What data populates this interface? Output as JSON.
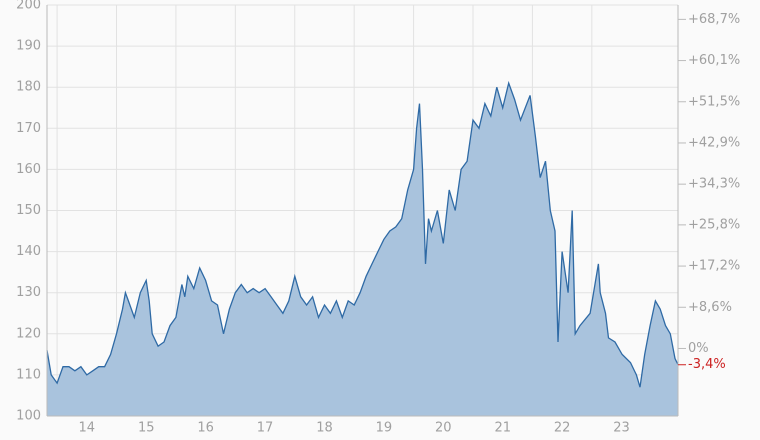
{
  "chart_data": {
    "type": "area",
    "x": [
      13.83,
      13.9,
      14.0,
      14.1,
      14.2,
      14.3,
      14.4,
      14.5,
      14.6,
      14.7,
      14.8,
      14.9,
      15.0,
      15.1,
      15.15,
      15.2,
      15.3,
      15.4,
      15.5,
      15.55,
      15.6,
      15.7,
      15.8,
      15.9,
      16.0,
      16.1,
      16.15,
      16.2,
      16.3,
      16.4,
      16.5,
      16.6,
      16.7,
      16.8,
      16.9,
      17.0,
      17.1,
      17.2,
      17.3,
      17.4,
      17.5,
      17.6,
      17.7,
      17.8,
      17.9,
      18.0,
      18.1,
      18.2,
      18.3,
      18.4,
      18.5,
      18.6,
      18.7,
      18.8,
      18.9,
      19.0,
      19.1,
      19.2,
      19.3,
      19.4,
      19.5,
      19.6,
      19.7,
      19.8,
      19.9,
      20.0,
      20.05,
      20.1,
      20.15,
      20.2,
      20.25,
      20.3,
      20.4,
      20.5,
      20.6,
      20.7,
      20.8,
      20.9,
      21.0,
      21.1,
      21.2,
      21.3,
      21.4,
      21.5,
      21.6,
      21.7,
      21.8,
      21.96,
      22.05,
      22.13,
      22.22,
      22.3,
      22.38,
      22.43,
      22.5,
      22.6,
      22.67,
      22.72,
      22.8,
      22.97,
      23.11,
      23.14,
      23.23,
      23.28,
      23.39,
      23.51,
      23.65,
      23.75,
      23.81,
      23.89,
      23.98,
      24.07,
      24.15,
      24.24,
      24.32,
      24.4,
      24.45
    ],
    "series": [
      {
        "color": "#2f6aa5",
        "fill": "#a9c3dd",
        "values": [
          116,
          110,
          108,
          112,
          112,
          111,
          112,
          110,
          111,
          112,
          112,
          115,
          120,
          126,
          130,
          128,
          124,
          130,
          133,
          128,
          120,
          117,
          118,
          122,
          124,
          132,
          129,
          134,
          131,
          136,
          133,
          128,
          127,
          120,
          126,
          130,
          132,
          130,
          131,
          130,
          131,
          129,
          127,
          125,
          128,
          134,
          129,
          127,
          129,
          124,
          127,
          125,
          128,
          124,
          128,
          127,
          130,
          134,
          137,
          140,
          143,
          145,
          146,
          148,
          155,
          160,
          170,
          176,
          160,
          137,
          148,
          145,
          150,
          142,
          155,
          150,
          160,
          162,
          172,
          170,
          176,
          173,
          180,
          175,
          181,
          177,
          172,
          178,
          168,
          158,
          162,
          150,
          145,
          118,
          140,
          130,
          150,
          120,
          122,
          125,
          137,
          130,
          125,
          119,
          118,
          115,
          113,
          110,
          107,
          115,
          122,
          128,
          126,
          122,
          120,
          114,
          112.5
        ]
      }
    ],
    "xlim": [
      13.83,
      24.45
    ],
    "xticks": [
      14,
      15,
      16,
      17,
      18,
      19,
      20,
      21,
      22,
      23
    ],
    "ylim": [
      100,
      200
    ],
    "yticks": [
      100,
      110,
      120,
      130,
      140,
      150,
      160,
      170,
      180,
      190,
      200
    ],
    "y2lim": [
      -14.1,
      71.7
    ],
    "y2ticks": [
      {
        "value": 68.7,
        "label": "+68,7%"
      },
      {
        "value": 60.1,
        "label": "+60,1%"
      },
      {
        "value": 51.5,
        "label": "+51,5%"
      },
      {
        "value": 42.9,
        "label": "+42,9%"
      },
      {
        "value": 34.3,
        "label": "+34,3%"
      },
      {
        "value": 25.8,
        "label": "+25,8%"
      },
      {
        "value": 17.2,
        "label": "+17,2%"
      },
      {
        "value": 8.6,
        "label": "+8,6%"
      },
      {
        "value": 0,
        "label": "0%"
      }
    ],
    "last_change": {
      "value": -3.4,
      "label": "-3,4%",
      "color": "#cc2222"
    },
    "grid": true
  }
}
